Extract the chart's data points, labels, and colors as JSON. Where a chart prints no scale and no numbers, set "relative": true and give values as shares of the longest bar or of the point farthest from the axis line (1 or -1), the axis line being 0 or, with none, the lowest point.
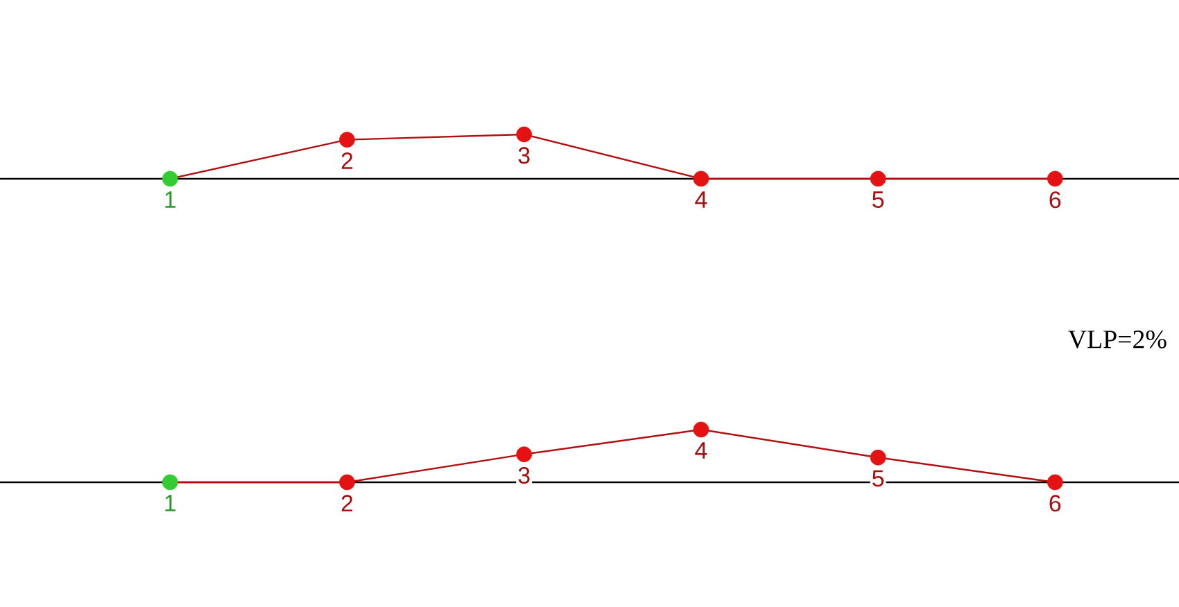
{
  "chart_data": [
    {
      "type": "line",
      "relative": true,
      "categories": [
        "1",
        "2",
        "3",
        "4",
        "5",
        "6"
      ],
      "marker": "circle",
      "color": "#b01010",
      "values": [
        0,
        0.88,
        1,
        0,
        0,
        0
      ],
      "colors": [
        "#33cc33",
        "#e41212",
        "#e41212",
        "#e41212",
        "#e41212",
        "#e41212"
      ]
    },
    {
      "type": "line",
      "relative": true,
      "categories": [
        "1",
        "2",
        "3",
        "4",
        "5",
        "6"
      ],
      "marker": "circle",
      "color": "#b01010",
      "values": [
        0,
        0,
        0.53,
        1,
        0.47,
        0
      ],
      "colors": [
        "#33cc33",
        "#e41212",
        "#e41212",
        "#e41212",
        "#e41212",
        "#e41212"
      ],
      "annotations": [
        "VLP=2%"
      ]
    }
  ]
}
